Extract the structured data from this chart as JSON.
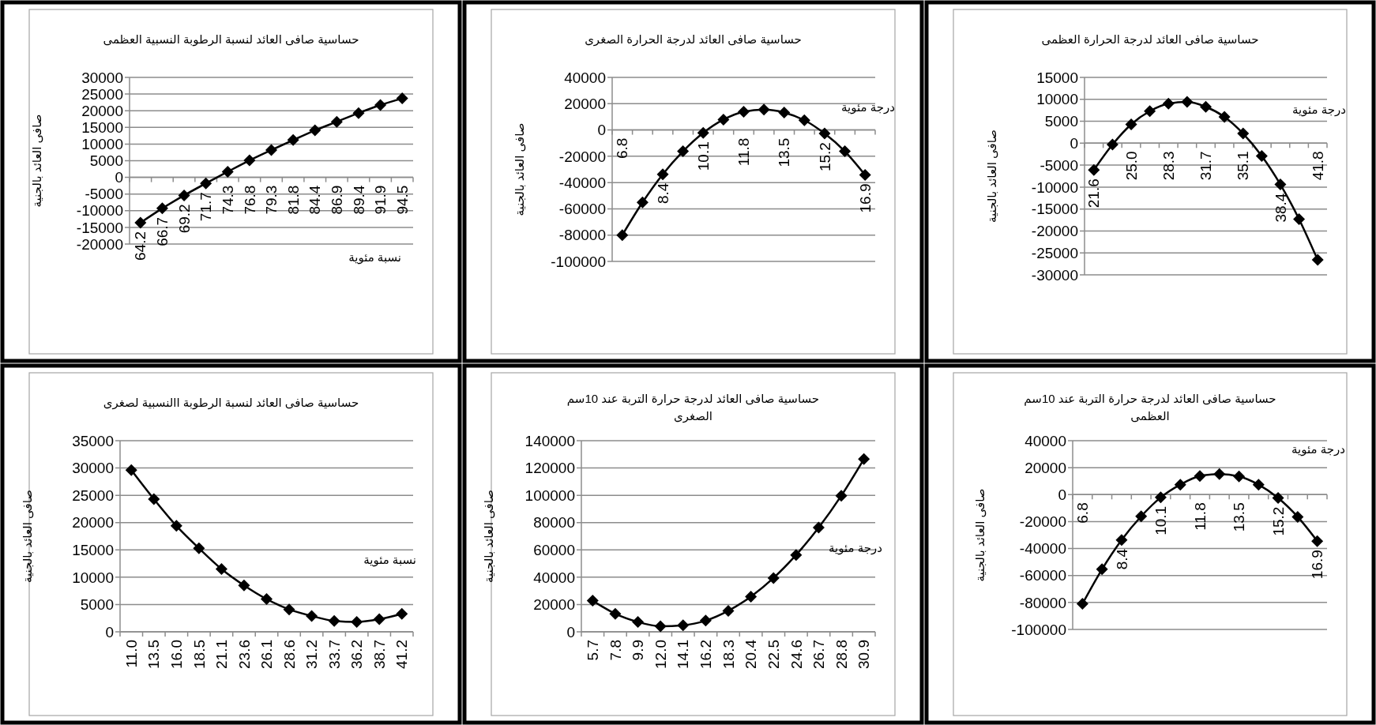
{
  "chart_data": [
    {
      "type": "line",
      "title": "حساسية صافى العائد  لنسبة الرطوبة النسبية العظمى",
      "xlabel": "نسبة مئوية",
      "ylabel": "صافى العائد بالجنية",
      "categories": [
        "64.2",
        "66.7",
        "69.2",
        "71.7",
        "74.3",
        "76.8",
        "79.3",
        "81.8",
        "84.4",
        "86.9",
        "89.4",
        "91.9",
        "94.5"
      ],
      "series": [
        {
          "color": "#000000",
          "values": [
            -13600,
            -9300,
            -5400,
            -1800,
            1700,
            5100,
            8200,
            11200,
            14100,
            16700,
            19300,
            21700,
            23700
          ]
        }
      ],
      "ylim": [
        -20000,
        30000
      ],
      "yticks": [
        -20000,
        -15000,
        -10000,
        -5000,
        0,
        5000,
        10000,
        15000,
        20000,
        25000,
        30000
      ],
      "grid": "y",
      "marker": "diamond"
    },
    {
      "type": "line",
      "title": "حساسية صافى العائد لدرجة الحرارة الصغرى",
      "xlabel": "درجة مئوية",
      "ylabel": "صافى العائد بالجنية",
      "categories": [
        "6.8",
        null,
        "8.4",
        null,
        "10.1",
        null,
        "11.8",
        null,
        "13.5",
        null,
        "15.2",
        null,
        "16.9"
      ],
      "series": [
        {
          "color": "#000000",
          "values": [
            -80000,
            -55100,
            -33700,
            -16200,
            -2200,
            7900,
            13900,
            15500,
            13300,
            7400,
            -2700,
            -16200,
            -34200
          ]
        }
      ],
      "ylim": [
        -100000,
        40000
      ],
      "yticks": [
        -100000,
        -80000,
        -60000,
        -40000,
        -20000,
        0,
        20000,
        40000
      ],
      "grid": "y",
      "marker": "diamond"
    },
    {
      "type": "line",
      "title": "حساسية صافى العائد لدرجة الحرارة العظمى",
      "xlabel": "درجة مئوية",
      "ylabel": "صافى العائد بالجنية",
      "categories": [
        "21.6",
        null,
        "25.0",
        null,
        "28.3",
        null,
        "31.7",
        null,
        "35.1",
        null,
        "38.4",
        null,
        "41.8"
      ],
      "series": [
        {
          "color": "#000000",
          "values": [
            -6100,
            -300,
            4300,
            7300,
            9000,
            9400,
            8300,
            6000,
            2200,
            -2900,
            -9400,
            -17300,
            -26600
          ]
        }
      ],
      "ylim": [
        -30000,
        15000
      ],
      "yticks": [
        -30000,
        -25000,
        -20000,
        -15000,
        -10000,
        -5000,
        0,
        5000,
        10000,
        15000
      ],
      "grid": "y",
      "marker": "diamond"
    },
    {
      "type": "line",
      "title": "حساسية صافى العائد لنسبة الرطوبة االنسبية لصغرى",
      "xlabel": "نسبة مئوية",
      "ylabel": "صافى العائد بالجنية",
      "categories": [
        "11.0",
        "13.5",
        "16.0",
        "18.5",
        "21.1",
        "23.6",
        "26.1",
        "28.6",
        "31.2",
        "33.7",
        "36.2",
        "38.7",
        "41.2"
      ],
      "series": [
        {
          "color": "#000000",
          "values": [
            29600,
            24300,
            19400,
            15300,
            11500,
            8500,
            6000,
            4100,
            2900,
            2000,
            1800,
            2300,
            3300
          ]
        }
      ],
      "ylim": [
        0,
        35000
      ],
      "yticks": [
        0,
        5000,
        10000,
        15000,
        20000,
        25000,
        30000,
        35000
      ],
      "grid": "y",
      "marker": "diamond"
    },
    {
      "type": "line",
      "title": "حساسية صافى العائد لدرجة حرارة التربة عند 10سم الصغرى",
      "xlabel": "درجة مئوية",
      "ylabel": "صافى العائد بالجنية",
      "categories": [
        "5.7",
        "7.8",
        "9.9",
        "12.0",
        "14.1",
        "16.2",
        "18.3",
        "20.4",
        "22.5",
        "24.6",
        "26.7",
        "28.8",
        "30.9"
      ],
      "series": [
        {
          "color": "#000000",
          "values": [
            22800,
            13200,
            7200,
            4100,
            4800,
            8200,
            15400,
            25800,
            39400,
            56300,
            76300,
            99700,
            126500
          ]
        }
      ],
      "ylim": [
        0,
        140000
      ],
      "yticks": [
        0,
        20000,
        40000,
        60000,
        80000,
        100000,
        120000,
        140000
      ],
      "grid": "y",
      "marker": "diamond"
    },
    {
      "type": "line",
      "title": "حساسية صافى العائد لدرجة حرارة التربة عند 10سم العظمى",
      "xlabel": "درجة مئوية",
      "ylabel": "صافى العائد بالجنية",
      "categories": [
        "6.8",
        null,
        "8.4",
        null,
        "10.1",
        null,
        "11.8",
        null,
        "13.5",
        null,
        "15.2",
        null,
        "16.9"
      ],
      "series": [
        {
          "color": "#000000",
          "values": [
            -81000,
            -55400,
            -33700,
            -16100,
            -2100,
            7400,
            13800,
            15200,
            13500,
            7400,
            -2500,
            -16500,
            -34500
          ]
        }
      ],
      "ylim": [
        -100000,
        40000
      ],
      "yticks": [
        -100000,
        -80000,
        -60000,
        -40000,
        -20000,
        0,
        20000,
        40000
      ],
      "grid": "y",
      "marker": "diamond"
    }
  ]
}
